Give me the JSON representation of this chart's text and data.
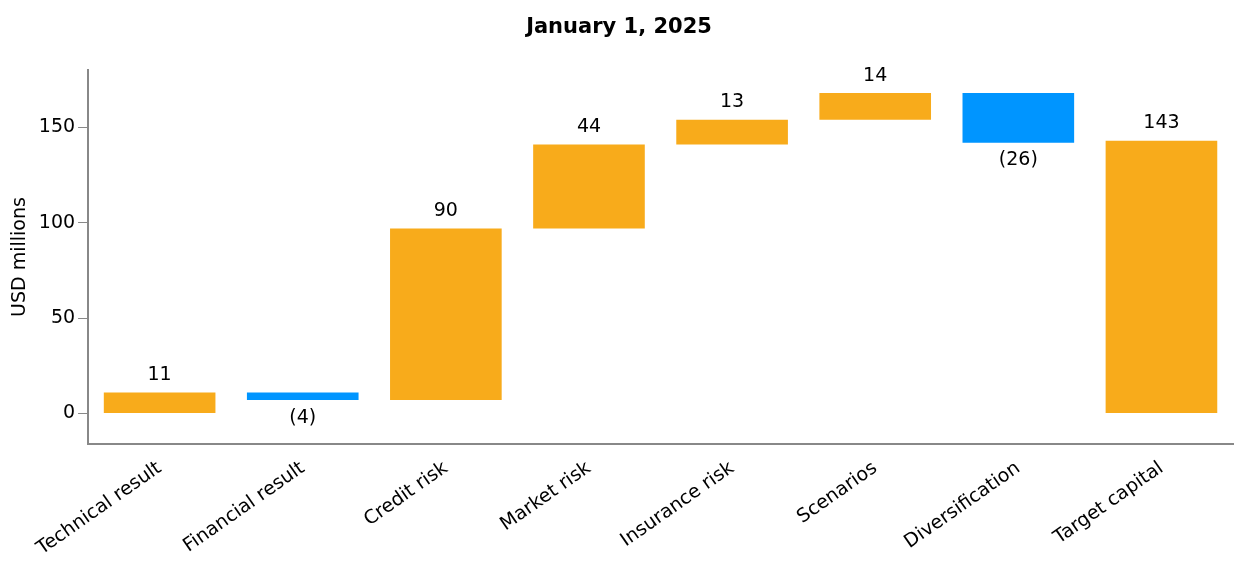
{
  "chart_data": {
    "type": "bar",
    "title": "January 1, 2025",
    "ylabel": "USD millions",
    "categories": [
      "Technical result",
      "Financial result",
      "Credit risk",
      "Market risk",
      "Insurance risk",
      "Scenarios",
      "Diversification",
      "Target capital"
    ],
    "values": [
      11,
      -4,
      90,
      44,
      13,
      14,
      -26,
      143
    ],
    "base": [
      0,
      11,
      7,
      97,
      141,
      154,
      168,
      0
    ],
    "colors": [
      "#f8ab1b",
      "#0095ff",
      "#f8ab1b",
      "#f8ab1b",
      "#f8ab1b",
      "#f8ab1b",
      "#0095ff",
      "#f8ab1b"
    ],
    "value_labels": [
      "11",
      "(4)",
      "90",
      "44",
      "13",
      "14",
      "(26)",
      "143"
    ],
    "ylim": [
      -16,
      180
    ],
    "yticks": [
      0,
      50,
      100,
      150
    ],
    "grid": false,
    "legend": false
  }
}
